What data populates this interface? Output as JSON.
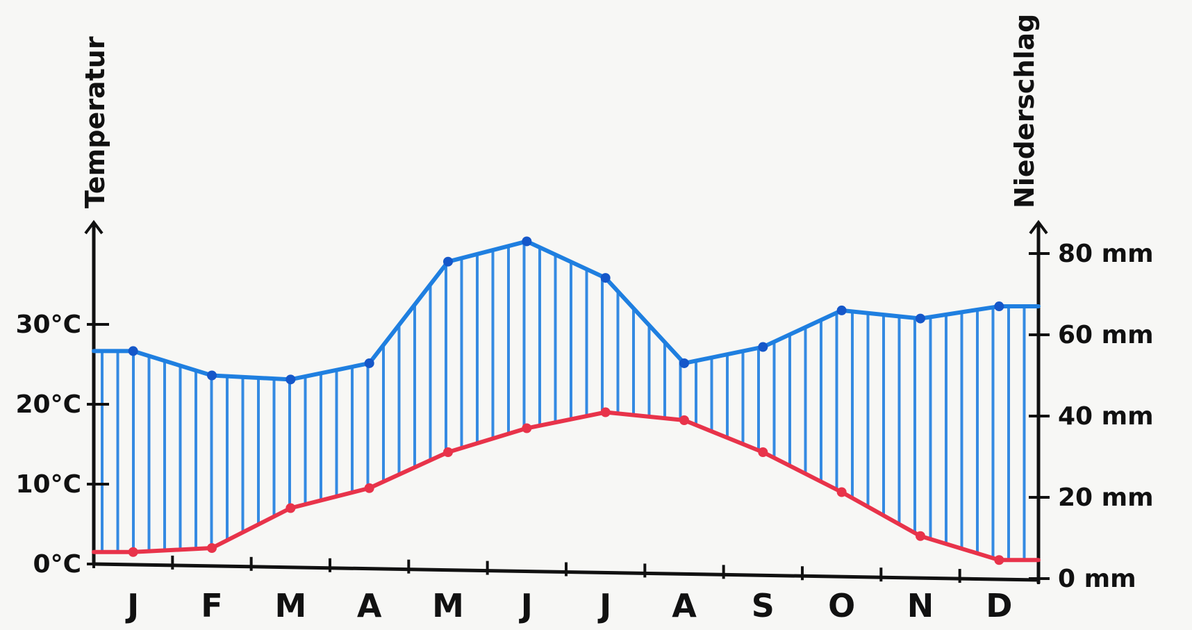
{
  "chart_data": {
    "type": "climate-diagram",
    "categories": [
      "J",
      "F",
      "M",
      "A",
      "M",
      "J",
      "J",
      "A",
      "S",
      "O",
      "N",
      "D"
    ],
    "series": [
      {
        "type": "line",
        "axis": "left",
        "values": [
          1.5,
          2,
          7,
          9.5,
          14,
          17,
          19,
          18,
          14,
          9,
          3.5,
          0.5
        ]
      },
      {
        "type": "line",
        "axis": "right",
        "values": [
          56,
          50,
          49,
          53,
          78,
          83,
          74,
          53,
          57,
          66,
          64,
          67
        ]
      }
    ],
    "y_left": {
      "label": "Temperatur",
      "ticks": [
        "0°C",
        "10°C",
        "20°C",
        "30°C"
      ],
      "tick_values": [
        0,
        10,
        20,
        30
      ],
      "ylim": [
        0,
        40
      ]
    },
    "y_right": {
      "label": "Niederschlag",
      "ticks": [
        "0 mm",
        "20 mm",
        "40 mm",
        "60 mm",
        "80 mm"
      ],
      "tick_values": [
        0,
        20,
        40,
        60,
        80
      ],
      "ylim": [
        0,
        80
      ]
    },
    "colors": {
      "temperature": "#e8334a",
      "precipitation": "#1f7fe0",
      "precipitation_dark": "#1557c9",
      "axis": "#111111"
    },
    "grid": false,
    "legend": "none"
  }
}
